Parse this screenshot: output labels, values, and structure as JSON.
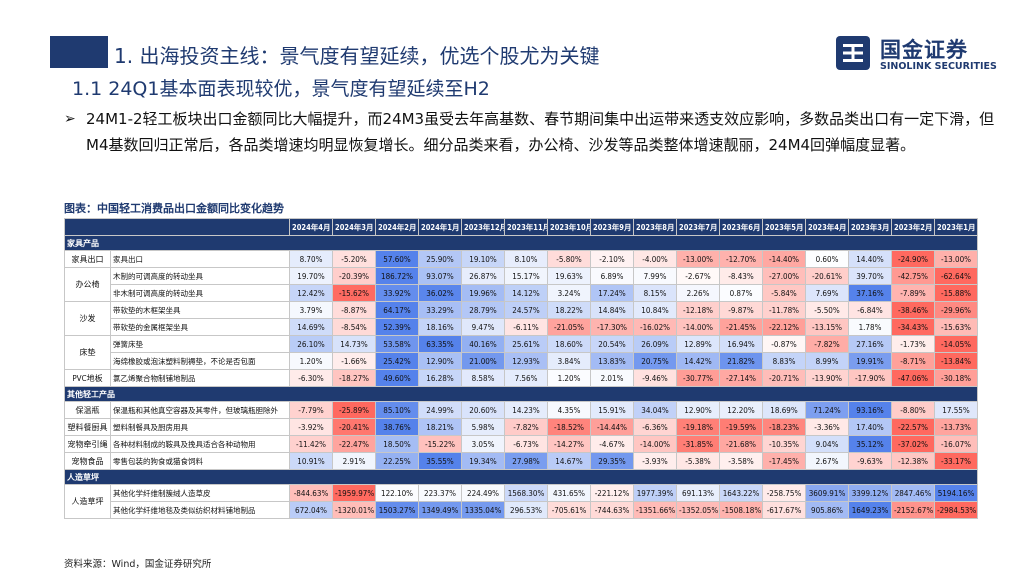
{
  "header": {
    "title": "1. 出海投资主线：景气度有望延续，优选个股尤为关键",
    "subtitle": "1.1 24Q1基本面表现较优，景气度有望延续至H2"
  },
  "logo": {
    "cn": "国金证券",
    "en": "SINOLINK SECURITIES"
  },
  "bullet": {
    "arrow": "➢",
    "text": "24M1-2轻工板块出口金额同比大幅提升，而24M3虽受去年高基数、春节期间集中出运带来透支效应影响，多数品类出口有一定下滑，但M4基数回归正常后，各品类增速均明显恢复增长。细分品类来看，办公椅、沙发等品类整体增速靓丽，24M4回弹幅度显著。"
  },
  "table_title": "图表：中国轻工消费品出口金额同比变化趋势",
  "table": {
    "columns": [
      "2024年4月",
      "2024年3月",
      "2024年2月",
      "2024年1月",
      "2023年12月",
      "2023年11月",
      "2023年10月",
      "2023年9月",
      "2023年8月",
      "2023年7月",
      "2023年6月",
      "2023年5月",
      "2023年4月",
      "2023年3月",
      "2023年2月",
      "2023年1月"
    ],
    "rows": [
      {
        "type": "section",
        "label": "家具产品"
      },
      {
        "cat": "家具出口",
        "sub": "家具出口",
        "span": 1,
        "values": [
          "8.70%",
          "-5.20%",
          "57.60%",
          "25.90%",
          "19.10%",
          "8.10%",
          "-5.80%",
          "-2.10%",
          "-4.00%",
          "-13.00%",
          "-12.70%",
          "-14.40%",
          "0.60%",
          "14.40%",
          "-24.90%",
          "-13.00%"
        ]
      },
      {
        "cat": "办公椅",
        "sub": "木制的可调高度的转动坐具",
        "span": 2,
        "values": [
          "19.70%",
          "-20.39%",
          "186.72%",
          "93.07%",
          "26.87%",
          "15.17%",
          "19.63%",
          "6.89%",
          "7.99%",
          "-2.67%",
          "-8.43%",
          "-27.00%",
          "-20.61%",
          "39.70%",
          "-42.75%",
          "-62.64%"
        ]
      },
      {
        "sub": "非木制可调高度的转动坐具",
        "values": [
          "12.42%",
          "-15.62%",
          "33.92%",
          "36.02%",
          "19.96%",
          "14.12%",
          "3.24%",
          "17.24%",
          "8.15%",
          "2.26%",
          "0.87%",
          "-5.84%",
          "7.69%",
          "37.16%",
          "-7.89%",
          "-15.88%"
        ]
      },
      {
        "cat": "沙发",
        "sub": "带软垫的木框架坐具",
        "span": 2,
        "values": [
          "3.79%",
          "-8.87%",
          "64.17%",
          "33.29%",
          "28.79%",
          "24.57%",
          "18.22%",
          "14.84%",
          "10.84%",
          "-12.18%",
          "-9.87%",
          "-11.78%",
          "-5.50%",
          "-6.84%",
          "-38.46%",
          "-29.96%"
        ]
      },
      {
        "sub": "带软垫的金属框架坐具",
        "values": [
          "14.69%",
          "-8.54%",
          "52.39%",
          "18.16%",
          "9.47%",
          "-6.11%",
          "-21.05%",
          "-17.30%",
          "-16.02%",
          "-14.00%",
          "-21.45%",
          "-22.12%",
          "-13.15%",
          "1.78%",
          "-34.43%",
          "-15.63%"
        ]
      },
      {
        "cat": "床垫",
        "sub": "弹簧床垫",
        "span": 2,
        "values": [
          "26.10%",
          "14.73%",
          "53.58%",
          "63.35%",
          "40.16%",
          "25.61%",
          "18.60%",
          "20.54%",
          "26.09%",
          "12.89%",
          "16.94%",
          "-0.87%",
          "-7.82%",
          "27.16%",
          "-1.73%",
          "-14.05%"
        ]
      },
      {
        "sub": "海绵橡胶或泡沫塑料制褥垫，不论是否包面",
        "values": [
          "1.20%",
          "-1.66%",
          "25.42%",
          "12.90%",
          "21.00%",
          "12.93%",
          "3.84%",
          "13.83%",
          "20.75%",
          "14.42%",
          "21.82%",
          "8.83%",
          "8.99%",
          "19.91%",
          "-8.71%",
          "-13.84%"
        ]
      },
      {
        "cat": "PVC地板",
        "sub": "氯乙烯聚合物制铺地制品",
        "span": 1,
        "values": [
          "-6.30%",
          "-18.27%",
          "49.60%",
          "16.28%",
          "8.58%",
          "7.56%",
          "1.20%",
          "2.01%",
          "-9.46%",
          "-30.77%",
          "-27.14%",
          "-20.71%",
          "-13.90%",
          "-17.90%",
          "-47.06%",
          "-30.18%"
        ]
      },
      {
        "type": "section",
        "label": "其他轻工产品"
      },
      {
        "cat": "保温瓶",
        "sub": "保温瓶和其他真空容器及其零件，但玻璃瓶胆除外",
        "span": 1,
        "values": [
          "-7.79%",
          "-25.89%",
          "85.10%",
          "24.99%",
          "20.60%",
          "14.23%",
          "4.35%",
          "15.91%",
          "34.04%",
          "12.90%",
          "12.20%",
          "18.69%",
          "71.24%",
          "93.16%",
          "-8.80%",
          "17.55%"
        ]
      },
      {
        "cat": "塑料餐厨具",
        "sub": "塑料制餐具及厨房用具",
        "span": 1,
        "values": [
          "-3.92%",
          "-20.41%",
          "38.76%",
          "18.21%",
          "5.98%",
          "-7.82%",
          "-18.52%",
          "-14.44%",
          "-6.36%",
          "-19.18%",
          "-19.59%",
          "-18.23%",
          "-3.36%",
          "17.40%",
          "-22.57%",
          "-13.73%"
        ]
      },
      {
        "cat": "宠物牵引绳",
        "sub": "各种材料制成的鞍具及挽具适合各种动物用",
        "span": 1,
        "values": [
          "-11.42%",
          "-22.47%",
          "18.50%",
          "-15.22%",
          "3.05%",
          "-6.73%",
          "-14.27%",
          "-4.67%",
          "-14.00%",
          "-31.85%",
          "-21.68%",
          "-10.35%",
          "9.04%",
          "35.12%",
          "-37.02%",
          "-16.07%"
        ]
      },
      {
        "cat": "宠物食品",
        "sub": "零售包装的狗食或猫食饲料",
        "span": 1,
        "values": [
          "10.91%",
          "2.91%",
          "22.25%",
          "35.55%",
          "19.34%",
          "27.98%",
          "14.67%",
          "29.35%",
          "-3.93%",
          "-5.38%",
          "-3.58%",
          "-17.45%",
          "2.67%",
          "-9.63%",
          "-12.38%",
          "-33.17%"
        ]
      },
      {
        "type": "section",
        "label": "人造草坪"
      },
      {
        "cat": "人造草坪",
        "sub": "其他化学纤维制簇绒人造草皮",
        "span": 2,
        "values": [
          "-844.63%",
          "-1959.97%",
          "122.10%",
          "223.37%",
          "224.49%",
          "1568.30%",
          "431.65%",
          "-221.12%",
          "1977.39%",
          "691.13%",
          "1643.22%",
          "-258.75%",
          "3609.91%",
          "3399.12%",
          "2847.46%",
          "5194.16%"
        ]
      },
      {
        "sub": "其他化学纤维地毯及类似纺织材料铺地制品",
        "values": [
          "672.04%",
          "-1320.01%",
          "1503.27%",
          "1349.49%",
          "1335.04%",
          "296.53%",
          "-705.61%",
          "-744.63%",
          "-1351.66%",
          "-1352.05%",
          "-1508.18%",
          "-617.67%",
          "905.86%",
          "1649.23%",
          "-2152.67%",
          "-2984.53%"
        ]
      }
    ]
  },
  "source": "资料来源：Wind，国金证券研究所",
  "colors": {
    "brand": "#1f3a70",
    "scale_min": "#d73027",
    "scale_mid": "#ffffff",
    "scale_max": "#4575b4"
  }
}
